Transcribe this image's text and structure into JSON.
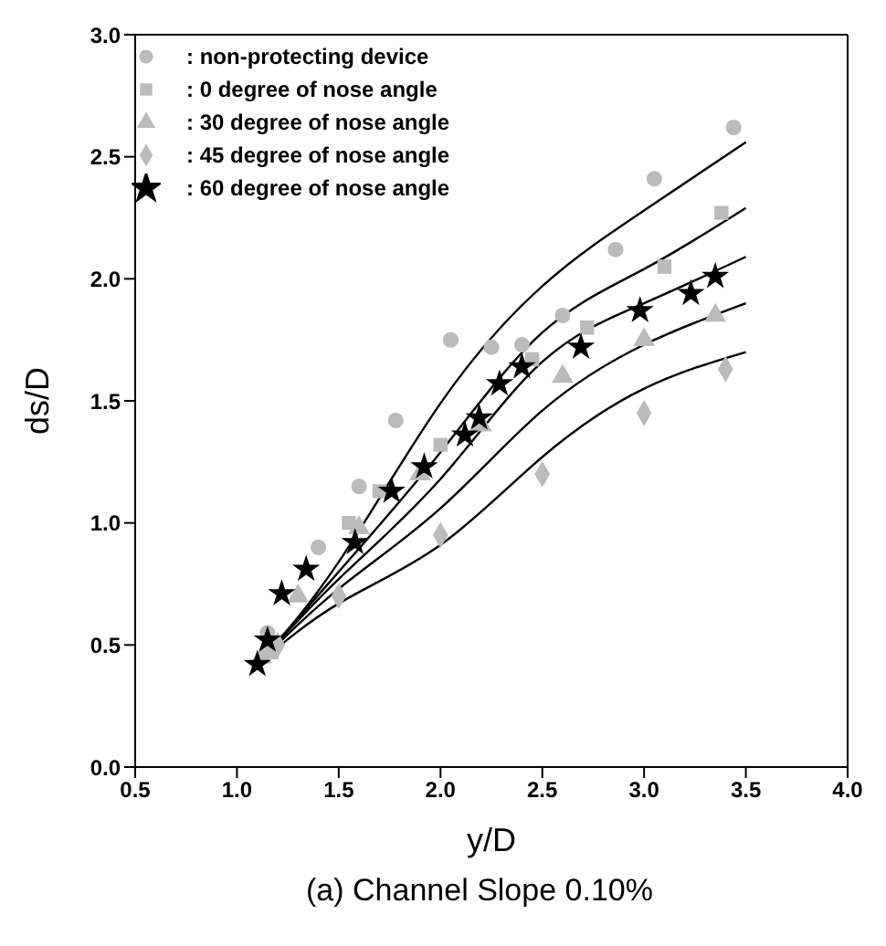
{
  "chart_data": {
    "type": "scatter",
    "xlabel": "y/D",
    "ylabel": "ds/D",
    "annotations": [
      "(a) Channel Slope 0.10%"
    ],
    "xlim": [
      0.5,
      4.0
    ],
    "xticks": [
      {
        "value": 0.5,
        "label": "0.5"
      },
      {
        "value": 1,
        "label": "1.0"
      },
      {
        "value": 1.5,
        "label": "1.5"
      },
      {
        "value": 2,
        "label": "2.0"
      },
      {
        "value": 2.5,
        "label": "2.5"
      },
      {
        "value": 3,
        "label": "3.0"
      },
      {
        "value": 3.5,
        "label": "3.5"
      },
      {
        "value": 4,
        "label": "4.0"
      }
    ],
    "ylim": [
      0,
      3.0
    ],
    "yticks": [
      {
        "value": 0,
        "label": "0.0"
      },
      {
        "value": 0.5,
        "label": "0.5"
      },
      {
        "value": 1,
        "label": "1.0"
      },
      {
        "value": 1.5,
        "label": "1.5"
      },
      {
        "value": 2,
        "label": "2.0"
      },
      {
        "value": 2.5,
        "label": "2.5"
      },
      {
        "value": 3,
        "label": "3.0"
      }
    ],
    "legend": "top left",
    "series": [
      {
        "name": ": non-protecting device",
        "color": "#bbbbbb",
        "marker": "circle",
        "x": [
          1.15,
          1.4,
          1.6,
          1.78,
          2.05,
          2.25,
          2.4,
          2.6,
          2.86,
          3.05,
          3.44
        ],
        "values": [
          0.55,
          0.9,
          1.15,
          1.42,
          1.75,
          1.72,
          1.73,
          1.85,
          2.12,
          2.41,
          2.62
        ]
      },
      {
        "name": ":  0 degree of nose angle",
        "color": "#bbbbbb",
        "marker": "square",
        "x": [
          1.17,
          1.33,
          1.55,
          1.7,
          2.0,
          2.45,
          2.72,
          3.1,
          3.38
        ],
        "values": [
          0.47,
          null,
          1.0,
          1.13,
          1.32,
          1.67,
          1.8,
          2.05,
          2.27
        ]
      },
      {
        "name": ": 30 degree of nose angle",
        "color": "#bbbbbb",
        "marker": "triangle",
        "x": [
          1.12,
          1.3,
          1.6,
          1.9,
          2.2,
          2.6,
          3.0,
          3.35
        ],
        "values": [
          0.45,
          0.7,
          0.98,
          1.2,
          1.4,
          1.6,
          1.75,
          1.85
        ]
      },
      {
        "name": ": 45 degree of nose angle",
        "color": "#bbbbbb",
        "marker": "diamond",
        "x": [
          1.2,
          1.5,
          2.0,
          2.5,
          3.0,
          3.4
        ],
        "values": [
          0.5,
          0.7,
          0.95,
          1.2,
          1.45,
          1.63
        ]
      },
      {
        "name": ": 60 degree of nose angle",
        "color": "#000000",
        "marker": "star",
        "x": [
          1.1,
          1.15,
          1.22,
          1.34,
          1.58,
          1.76,
          1.92,
          2.12,
          2.19,
          2.29,
          2.4,
          2.69,
          2.98,
          3.23,
          3.35
        ],
        "values": [
          0.42,
          0.52,
          0.71,
          0.81,
          0.92,
          1.13,
          1.23,
          1.36,
          1.43,
          1.57,
          1.64,
          1.72,
          1.87,
          1.94,
          2.01
        ]
      },
      {
        "type": "line",
        "color": "#000000",
        "marker": "none",
        "x": [
          1.1,
          1.5,
          2.0,
          2.5,
          3.0,
          3.5
        ],
        "values": [
          0.42,
          0.84,
          1.49,
          1.97,
          2.28,
          2.56
        ]
      },
      {
        "type": "line",
        "color": "#000000",
        "marker": "none",
        "x": [
          1.1,
          1.5,
          2.0,
          2.5,
          3.0,
          3.5
        ],
        "values": [
          0.42,
          0.8,
          1.29,
          1.78,
          2.04,
          2.29
        ]
      },
      {
        "type": "line",
        "color": "#000000",
        "marker": "none",
        "x": [
          1.1,
          1.5,
          2.0,
          2.5,
          3.0,
          3.5
        ],
        "values": [
          0.42,
          0.77,
          1.18,
          1.66,
          1.9,
          2.09
        ]
      },
      {
        "type": "line",
        "color": "#000000",
        "marker": "none",
        "x": [
          1.1,
          1.5,
          2.0,
          2.5,
          3.0,
          3.5
        ],
        "values": [
          0.42,
          0.73,
          1.06,
          1.46,
          1.73,
          1.9
        ]
      },
      {
        "type": "line",
        "color": "#000000",
        "marker": "none",
        "x": [
          1.1,
          1.5,
          2.0,
          2.5,
          3.0,
          3.5
        ],
        "values": [
          0.42,
          0.67,
          0.91,
          1.27,
          1.55,
          1.7
        ]
      }
    ]
  }
}
